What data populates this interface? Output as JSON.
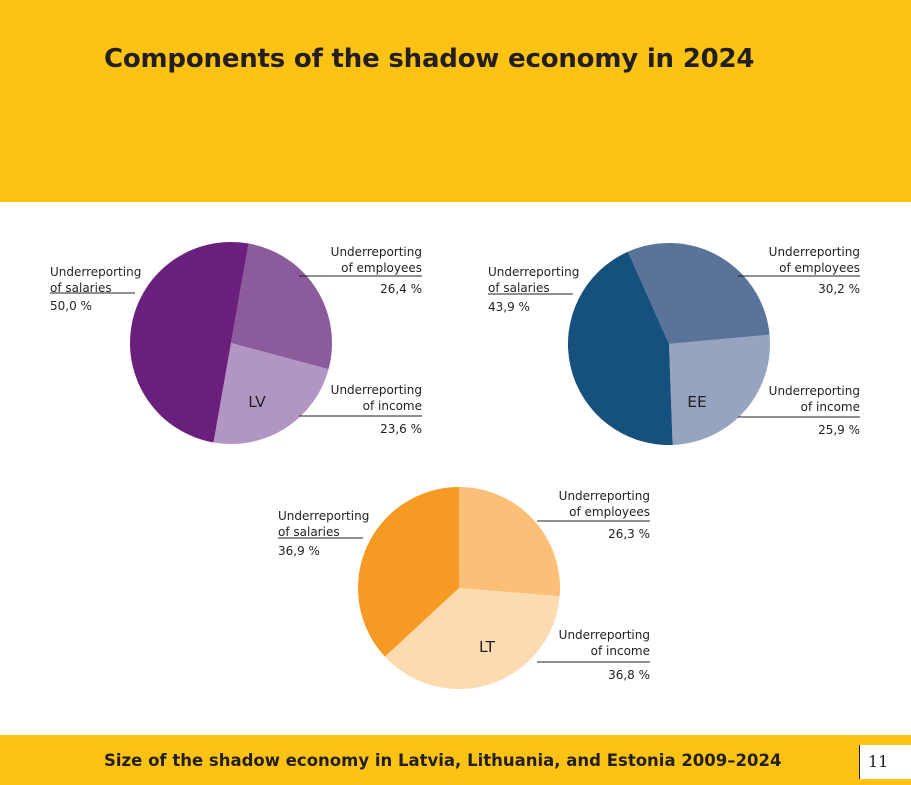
{
  "header": {
    "title": "Components of the shadow economy in 2024"
  },
  "footer": {
    "text": "Size of the shadow economy in Latvia, Lithuania, and Estonia 2009–2024",
    "page_number": "11"
  },
  "chart_data": [
    {
      "type": "pie",
      "center_label": "LV",
      "categories": [
        "Underreporting of salaries",
        "Underreporting of employees",
        "Underreporting of income"
      ],
      "values": [
        50.0,
        26.4,
        23.6
      ],
      "value_labels": [
        "50,0 %",
        "26,4 %",
        "23,6 %"
      ],
      "label_lines": [
        [
          "Underreporting",
          "of salaries"
        ],
        [
          "Underreporting",
          "of employees"
        ],
        [
          "Underreporting",
          "of income"
        ]
      ],
      "colors": [
        "#6b1f7c",
        "#8b5b9b",
        "#b196c4"
      ]
    },
    {
      "type": "pie",
      "center_label": "EE",
      "categories": [
        "Underreporting of salaries",
        "Underreporting of employees",
        "Underreporting of income"
      ],
      "values": [
        43.9,
        30.2,
        25.9
      ],
      "value_labels": [
        "43,9 %",
        "30,2 %",
        "25,9 %"
      ],
      "label_lines": [
        [
          "Underreporting",
          "of salaries"
        ],
        [
          "Underreporting",
          "of employees"
        ],
        [
          "Underreporting",
          "of income"
        ]
      ],
      "colors": [
        "#16507c",
        "#5a7399",
        "#97a4c0"
      ]
    },
    {
      "type": "pie",
      "center_label": "LT",
      "categories": [
        "Underreporting of salaries",
        "Underreporting of employees",
        "Underreporting of income"
      ],
      "values": [
        36.9,
        26.3,
        36.8
      ],
      "value_labels": [
        "36,9 %",
        "26,3 %",
        "36,8 %"
      ],
      "label_lines": [
        [
          "Underreporting",
          "of salaries"
        ],
        [
          "Underreporting",
          "of employees"
        ],
        [
          "Underreporting",
          "of income"
        ]
      ],
      "colors": [
        "#f79a23",
        "#fbbf78",
        "#fddbb0"
      ]
    }
  ]
}
